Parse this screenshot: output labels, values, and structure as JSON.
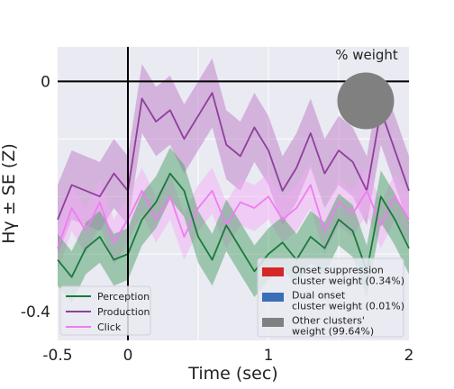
{
  "chart_data": {
    "type": "line",
    "xlabel": "Time (sec)",
    "ylabel": "Hγ ± SE (Z)",
    "xlim": [
      -0.5,
      2
    ],
    "ylim": [
      -0.45,
      0.06
    ],
    "x_ticks": [
      -0.5,
      0,
      1,
      2
    ],
    "x_tick_labels": [
      "-0.5",
      "0",
      "1",
      "2"
    ],
    "y_ticks": [
      0,
      -0.4
    ],
    "y_tick_labels": [
      "0",
      "-0.4"
    ],
    "x_gridlines": [
      0.5,
      1,
      1.5
    ],
    "y_gridlines": [
      -0.1,
      -0.2,
      -0.3
    ],
    "reference_lines": {
      "x": 0,
      "y": 0
    },
    "grid": true,
    "background": "#eaeaf2",
    "legend_position": "bottom-left",
    "series": [
      {
        "name": "Perception",
        "color": "#1a7a3c",
        "band_color": "#3e9a5c",
        "se": 0.045,
        "x": [
          -0.5,
          -0.4,
          -0.3,
          -0.2,
          -0.1,
          0,
          0.1,
          0.2,
          0.3,
          0.4,
          0.5,
          0.6,
          0.7,
          0.8,
          0.9,
          1,
          1.1,
          1.2,
          1.3,
          1.4,
          1.5,
          1.6,
          1.7,
          1.8,
          1.9,
          2
        ],
        "values": [
          -0.31,
          -0.34,
          -0.29,
          -0.27,
          -0.31,
          -0.3,
          -0.24,
          -0.21,
          -0.16,
          -0.19,
          -0.27,
          -0.31,
          -0.25,
          -0.29,
          -0.33,
          -0.3,
          -0.28,
          -0.31,
          -0.27,
          -0.29,
          -0.24,
          -0.26,
          -0.33,
          -0.2,
          -0.24,
          -0.29
        ]
      },
      {
        "name": "Production",
        "color": "#8e3f9a",
        "band_color": "#b76fc1",
        "se": 0.06,
        "x": [
          -0.5,
          -0.4,
          -0.3,
          -0.2,
          -0.1,
          0,
          0.1,
          0.2,
          0.3,
          0.4,
          0.5,
          0.6,
          0.7,
          0.8,
          0.9,
          1,
          1.1,
          1.2,
          1.3,
          1.4,
          1.5,
          1.6,
          1.7,
          1.8,
          1.9,
          2
        ],
        "values": [
          -0.24,
          -0.18,
          -0.19,
          -0.2,
          -0.16,
          -0.19,
          -0.03,
          -0.07,
          -0.05,
          -0.1,
          -0.06,
          -0.02,
          -0.11,
          -0.13,
          -0.08,
          -0.12,
          -0.19,
          -0.15,
          -0.09,
          -0.16,
          -0.12,
          -0.14,
          -0.19,
          -0.05,
          -0.12,
          -0.19
        ]
      },
      {
        "name": "Click",
        "color": "#f07cf2",
        "band_color": "#f5a8f5",
        "se": 0.04,
        "x": [
          -0.5,
          -0.4,
          -0.3,
          -0.2,
          -0.1,
          0,
          0.1,
          0.2,
          0.3,
          0.4,
          0.5,
          0.6,
          0.7,
          0.8,
          0.9,
          1,
          1.1,
          1.2,
          1.3,
          1.4,
          1.5,
          1.6,
          1.7,
          1.8,
          1.9,
          2
        ],
        "values": [
          -0.29,
          -0.22,
          -0.26,
          -0.21,
          -0.28,
          -0.24,
          -0.19,
          -0.24,
          -0.2,
          -0.27,
          -0.22,
          -0.19,
          -0.25,
          -0.21,
          -0.22,
          -0.2,
          -0.24,
          -0.22,
          -0.18,
          -0.26,
          -0.21,
          -0.23,
          -0.19,
          -0.25,
          -0.2,
          -0.24
        ]
      }
    ],
    "pie": {
      "title": "% weight",
      "slices": [
        {
          "label": "Onset suppression\ncluster weight (0.34%)",
          "value": 0.34,
          "color": "#d62728"
        },
        {
          "label": "Dual onset\ncluster weight (0.01%)",
          "value": 0.01,
          "color": "#3a6fb5"
        },
        {
          "label": "Other clusters'\nweight (99.64%)",
          "value": 99.64,
          "color": "#808080"
        }
      ]
    }
  }
}
